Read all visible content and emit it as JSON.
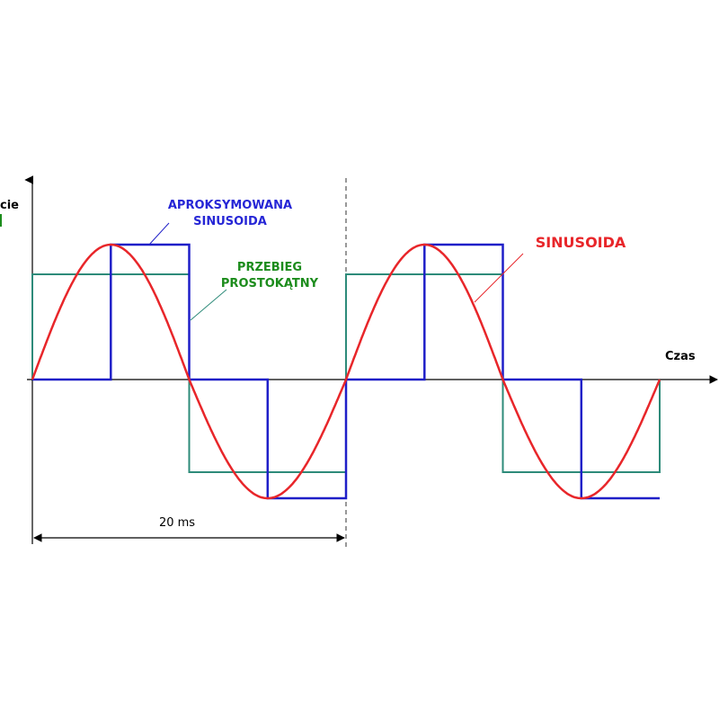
{
  "diagram": {
    "y_axis_label_fragment": "cie",
    "x_axis_label": "Czas",
    "approx_label_line1": "APROKSYMOWANA",
    "approx_label_line2": "SINUSOIDA",
    "square_label_line1": "PRZEBIEG",
    "square_label_line2": "PROSTOKĄTNY",
    "sine_label": "SINUSOIDA",
    "period_label": "20 ms",
    "colors": {
      "sine": "#e8262a",
      "approx": "#1f1fc8",
      "square": "#2e8b7a",
      "approx_text": "#2626d6",
      "square_text": "#1c8c1c",
      "sine_text": "#e8262a",
      "axis": "#000000",
      "period_marker": "#555555"
    },
    "waveforms": {
      "periods_shown": 2,
      "sine_amplitude": 1.0,
      "square_level": 0.78,
      "approx_steps": [
        0,
        1,
        0,
        -1
      ],
      "approx_step_level": 1.0
    }
  }
}
